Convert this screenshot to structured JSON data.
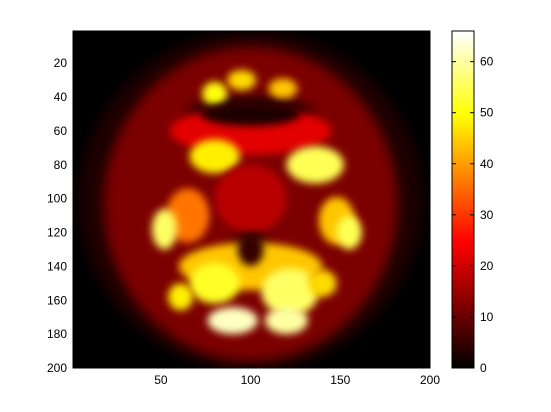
{
  "chart_data": {
    "type": "heatmap",
    "colormap": "hot",
    "xlim": [
      1,
      200
    ],
    "ylim": [
      1,
      200
    ],
    "y_reversed": true,
    "xticks": [
      50,
      100,
      150,
      200
    ],
    "xtick_labels": [
      "50",
      "100",
      "150",
      "200"
    ],
    "yticks": [
      20,
      40,
      60,
      80,
      100,
      120,
      140,
      160,
      180,
      200
    ],
    "ytick_labels": [
      "20",
      "40",
      "60",
      "80",
      "100",
      "120",
      "140",
      "160",
      "180",
      "200"
    ],
    "colorbar": {
      "clim": [
        0,
        66
      ],
      "ticks": [
        0,
        10,
        20,
        30,
        40,
        50,
        60
      ],
      "tick_labels": [
        "0",
        "10",
        "20",
        "30",
        "40",
        "50",
        "60"
      ],
      "placement": "right"
    },
    "grid": false,
    "image_description_blobs": {
      "shell": {
        "cx": 100,
        "cy": 101,
        "rx": 96,
        "ry": 100,
        "value": 3
      },
      "brain": {
        "cx": 100,
        "cy": 103,
        "rx": 82,
        "ry": 93,
        "value": 12
      },
      "regions": [
        {
          "cx": 100,
          "cy": 60,
          "rx": 45,
          "ry": 14,
          "value": 22
        },
        {
          "cx": 80,
          "cy": 75,
          "rx": 14,
          "ry": 10,
          "value": 48
        },
        {
          "cx": 136,
          "cy": 80,
          "rx": 16,
          "ry": 11,
          "value": 55
        },
        {
          "cx": 65,
          "cy": 110,
          "rx": 12,
          "ry": 16,
          "value": 36
        },
        {
          "cx": 148,
          "cy": 113,
          "rx": 10,
          "ry": 14,
          "value": 44
        },
        {
          "cx": 52,
          "cy": 118,
          "rx": 7,
          "ry": 12,
          "value": 56
        },
        {
          "cx": 155,
          "cy": 120,
          "rx": 7,
          "ry": 10,
          "value": 55
        },
        {
          "cx": 100,
          "cy": 140,
          "rx": 40,
          "ry": 14,
          "value": 44
        },
        {
          "cx": 80,
          "cy": 150,
          "rx": 14,
          "ry": 12,
          "value": 52
        },
        {
          "cx": 122,
          "cy": 155,
          "rx": 16,
          "ry": 14,
          "value": 56
        },
        {
          "cx": 90,
          "cy": 172,
          "rx": 14,
          "ry": 8,
          "value": 62
        },
        {
          "cx": 120,
          "cy": 172,
          "rx": 12,
          "ry": 8,
          "value": 60
        },
        {
          "cx": 61,
          "cy": 158,
          "rx": 7,
          "ry": 8,
          "value": 48
        },
        {
          "cx": 140,
          "cy": 150,
          "rx": 8,
          "ry": 8,
          "value": 46
        },
        {
          "cx": 80,
          "cy": 38,
          "rx": 7,
          "ry": 7,
          "value": 50
        },
        {
          "cx": 95,
          "cy": 30,
          "rx": 8,
          "ry": 6,
          "value": 46
        },
        {
          "cx": 118,
          "cy": 35,
          "rx": 8,
          "ry": 6,
          "value": 44
        },
        {
          "cx": 100,
          "cy": 100,
          "rx": 20,
          "ry": 20,
          "value": 18
        }
      ],
      "cold_regions": [
        {
          "cx": 100,
          "cy": 50,
          "rx": 35,
          "ry": 10,
          "value": 3
        },
        {
          "cx": 100,
          "cy": 130,
          "rx": 9,
          "ry": 14,
          "value": 5
        }
      ]
    }
  },
  "colors": {
    "black": "#000000",
    "dark_red": "#800000",
    "red": "#ff0000",
    "orange": "#ff8000",
    "yellow": "#ffff00",
    "white": "#ffffff"
  }
}
